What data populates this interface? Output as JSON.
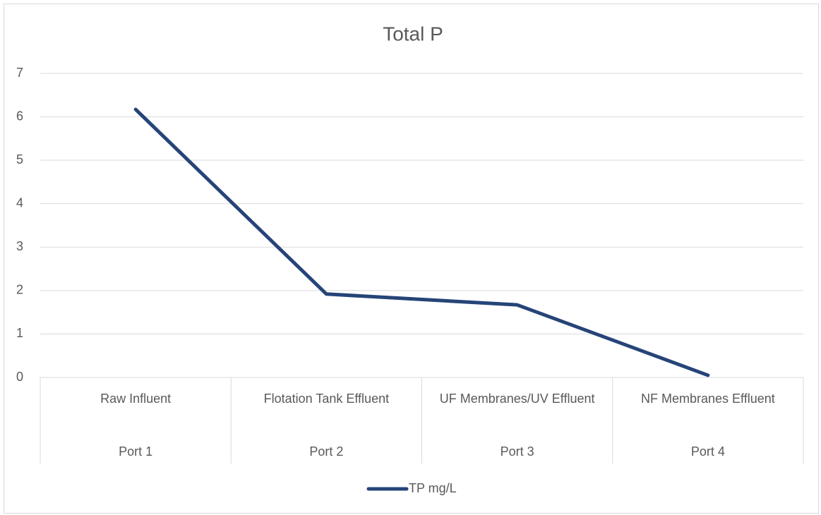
{
  "chart_data": {
    "type": "line",
    "title": "Total P",
    "categories": [
      "Raw Influent",
      "Flotation Tank Effluent",
      "UF Membranes/UV Effluent",
      "NF Membranes Effluent"
    ],
    "category_groups": [
      "Port 1",
      "Port 2",
      "Port 3",
      "Port 4"
    ],
    "series": [
      {
        "name": "TP mg/L",
        "color": "#264478",
        "values": [
          6.17,
          1.92,
          1.67,
          0.05
        ]
      }
    ],
    "ylim": [
      0,
      7
    ],
    "yticks": [
      0,
      1,
      2,
      3,
      4,
      5,
      6,
      7
    ],
    "grid": true,
    "legend": "bottom"
  }
}
